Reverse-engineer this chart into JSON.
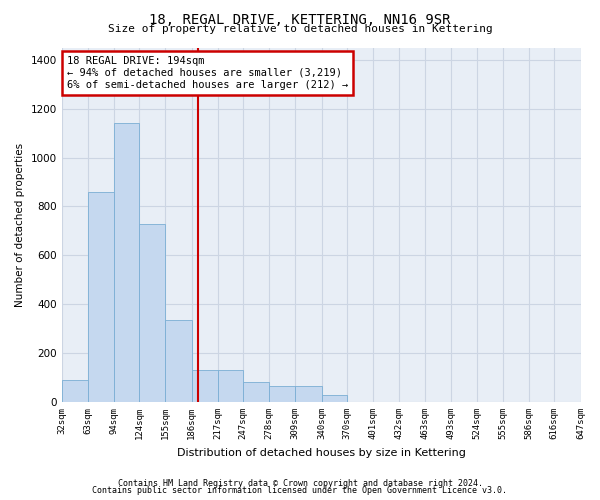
{
  "title": "18, REGAL DRIVE, KETTERING, NN16 9SR",
  "subtitle": "Size of property relative to detached houses in Kettering",
  "xlabel": "Distribution of detached houses by size in Kettering",
  "ylabel": "Number of detached properties",
  "footer_line1": "Contains HM Land Registry data © Crown copyright and database right 2024.",
  "footer_line2": "Contains public sector information licensed under the Open Government Licence v3.0.",
  "annotation_line1": "18 REGAL DRIVE: 194sqm",
  "annotation_line2": "← 94% of detached houses are smaller (3,219)",
  "annotation_line3": "6% of semi-detached houses are larger (212) →",
  "property_size": 194,
  "bar_color": "#c5d8ef",
  "bar_edge_color": "#7aaed4",
  "vline_color": "#cc0000",
  "annotation_box_color": "#cc0000",
  "grid_color": "#ccd5e3",
  "bg_color": "#e8eef6",
  "bin_edges": [
    32,
    63,
    94,
    124,
    155,
    186,
    217,
    247,
    278,
    309,
    340,
    370,
    401,
    432,
    463,
    493,
    524,
    555,
    586,
    616,
    647
  ],
  "bin_labels": [
    "32sqm",
    "63sqm",
    "94sqm",
    "124sqm",
    "155sqm",
    "186sqm",
    "217sqm",
    "247sqm",
    "278sqm",
    "309sqm",
    "340sqm",
    "370sqm",
    "401sqm",
    "432sqm",
    "463sqm",
    "493sqm",
    "524sqm",
    "555sqm",
    "586sqm",
    "616sqm",
    "647sqm"
  ],
  "bar_heights": [
    90,
    860,
    1140,
    730,
    335,
    130,
    130,
    80,
    65,
    65,
    30,
    0,
    0,
    0,
    0,
    0,
    0,
    0,
    0,
    0
  ],
  "ylim": [
    0,
    1450
  ],
  "yticks": [
    0,
    200,
    400,
    600,
    800,
    1000,
    1200,
    1400
  ]
}
